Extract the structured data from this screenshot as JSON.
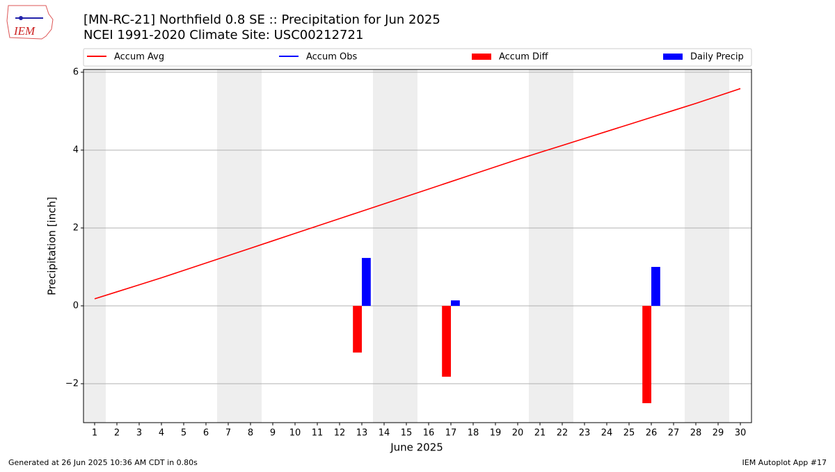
{
  "chart_data": {
    "type": "bar_line",
    "logo_text": "IEM",
    "title": "[MN-RC-21] Northfield 0.8 SE :: Precipitation for Jun 2025",
    "subtitle": "NCEI 1991-2020 Climate Site: USC00212721",
    "x_label": "June 2025",
    "y_label": "Precipitation [inch]",
    "footer_left": "Generated at 26 Jun 2025 10:36 AM CDT in 0.80s",
    "footer_right": "IEM Autoplot App #17",
    "x": [
      1,
      2,
      3,
      4,
      5,
      6,
      7,
      8,
      9,
      10,
      11,
      12,
      13,
      14,
      15,
      16,
      17,
      18,
      19,
      20,
      21,
      22,
      23,
      24,
      25,
      26,
      27,
      28,
      29,
      30
    ],
    "xlim": [
      0.5,
      30.5
    ],
    "xticks": [
      1,
      2,
      3,
      4,
      5,
      6,
      7,
      8,
      9,
      10,
      11,
      12,
      13,
      14,
      15,
      16,
      17,
      18,
      19,
      20,
      21,
      22,
      23,
      24,
      25,
      26,
      27,
      28,
      29,
      30
    ],
    "ylim": [
      -3,
      6.07
    ],
    "yticks": [
      {
        "value": -2,
        "label": "−2"
      },
      0,
      2,
      4,
      6
    ],
    "grid": true,
    "weekend_days": [
      1,
      7,
      8,
      14,
      15,
      21,
      22,
      28,
      29
    ],
    "series": [
      {
        "name": "Accum Avg",
        "kind": "line",
        "color": "#ff0000",
        "values": [
          0.18,
          0.36,
          0.54,
          0.72,
          0.91,
          1.1,
          1.29,
          1.48,
          1.67,
          1.86,
          2.05,
          2.24,
          2.43,
          2.62,
          2.81,
          3.0,
          3.19,
          3.38,
          3.57,
          3.76,
          3.94,
          4.12,
          4.3,
          4.48,
          4.66,
          4.84,
          5.02,
          5.2,
          5.39,
          5.58
        ]
      },
      {
        "name": "Accum Obs",
        "kind": "line",
        "color": "#0000ff",
        "values": [
          null,
          null,
          null,
          null,
          null,
          null,
          null,
          null,
          null,
          null,
          null,
          null,
          null,
          null,
          null,
          null,
          null,
          null,
          null,
          null,
          null,
          null,
          null,
          null,
          null,
          null,
          null,
          null,
          null,
          null
        ]
      },
      {
        "name": "Accum Diff",
        "kind": "bar",
        "offset": -0.2,
        "color": "#ff0000",
        "values": [
          null,
          null,
          null,
          null,
          null,
          null,
          null,
          null,
          null,
          null,
          null,
          null,
          -1.2,
          null,
          null,
          null,
          -1.82,
          null,
          null,
          null,
          null,
          null,
          null,
          null,
          null,
          -2.5,
          null,
          null,
          null,
          null
        ]
      },
      {
        "name": "Daily Precip",
        "kind": "bar",
        "offset": 0.2,
        "color": "#0000ff",
        "values": [
          null,
          null,
          null,
          null,
          null,
          null,
          null,
          null,
          null,
          null,
          null,
          null,
          1.23,
          null,
          null,
          null,
          0.14,
          null,
          null,
          null,
          null,
          null,
          null,
          null,
          null,
          1.0,
          null,
          null,
          null,
          null
        ]
      }
    ]
  }
}
